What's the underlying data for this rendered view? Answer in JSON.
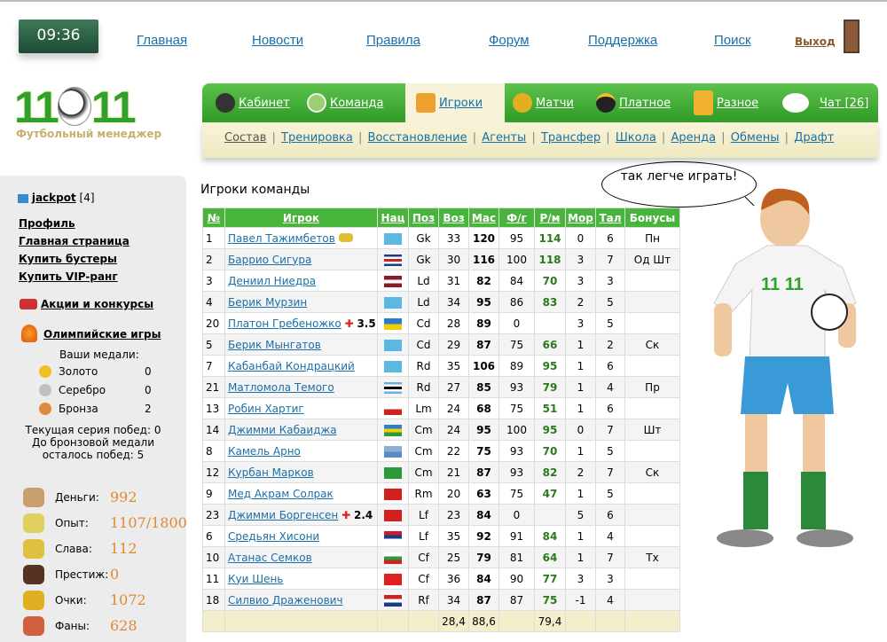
{
  "clock": "09:36",
  "topnav": [
    "Главная",
    "Новости",
    "Правила",
    "Форум",
    "Поддержка",
    "Поиск"
  ],
  "exit": "Выход",
  "logo": {
    "text_left": "11",
    "text_right": "11",
    "subtitle": "Футбольный менеджер"
  },
  "mainnav": [
    {
      "label": "Кабинет",
      "icon": "manager-icon"
    },
    {
      "label": "Команда",
      "icon": "stadium-icon"
    },
    {
      "label": "Игроки",
      "icon": "players-icon",
      "active": true
    },
    {
      "label": "Матчи",
      "icon": "trophy-ball-icon"
    },
    {
      "label": "Платное",
      "icon": "wallet-icon"
    },
    {
      "label": "Разное",
      "icon": "beer-icon"
    },
    {
      "label": "Чат [26]",
      "icon": "chat-bubble-icon"
    }
  ],
  "subnav": [
    "Состав",
    "Тренировка",
    "Восстановление",
    "Агенты",
    "Трансфер",
    "Школа",
    "Аренда",
    "Обмены",
    "Драфт"
  ],
  "sidebar": {
    "user": "jackpot",
    "level": "[4]",
    "links": [
      "Профиль",
      "Главная страница",
      "Купить бустеры",
      "Купить VIP-ранг"
    ],
    "promo": "Акции и конкурсы",
    "olympic": "Олимпийские игры",
    "medals_title": "Ваши медали:",
    "medals": [
      {
        "name": "Золото",
        "count": "0",
        "color": "#f0c020"
      },
      {
        "name": "Серебро",
        "count": "0",
        "color": "#c0c0c0"
      },
      {
        "name": "Бронза",
        "count": "2",
        "color": "#e08a40"
      }
    ],
    "streak": "Текущая серия побед: 0",
    "to_bronze": "До бронзовой медали",
    "wins_left": "осталось побед: 5",
    "stats": [
      {
        "label": "Деньги:",
        "value": "992",
        "icon": "money-bag-icon"
      },
      {
        "label": "Опыт:",
        "value": "1107/1800",
        "icon": "experience-icon"
      },
      {
        "label": "Слава:",
        "value": "112",
        "icon": "podium-icon"
      },
      {
        "label": "Престиж:",
        "value": "0",
        "icon": "gentleman-icon"
      },
      {
        "label": "Очки:",
        "value": "1072",
        "icon": "cup-icon"
      },
      {
        "label": "Фаны:",
        "value": "628",
        "icon": "fans-icon"
      }
    ]
  },
  "page_title": "Игроки команды",
  "bubble": "так легче играть!",
  "table": {
    "headers": [
      "№",
      "Игрок",
      "Нац",
      "Поз",
      "Воз",
      "Мас",
      "Ф/г",
      "Р/м",
      "Мор",
      "Тал",
      "Бонусы"
    ],
    "rows": [
      [
        "1",
        "Павел Тажимбетов",
        "",
        "Gk",
        "33",
        "120",
        "95",
        "114",
        "0",
        "6",
        "Пн",
        "kz"
      ],
      [
        "2",
        "Баррио Сигура",
        "",
        "Gk",
        "30",
        "116",
        "100",
        "118",
        "3",
        "7",
        "Од Шт",
        "cr"
      ],
      [
        "3",
        "Дениил Ниедра",
        "",
        "Ld",
        "31",
        "82",
        "84",
        "70",
        "3",
        "3",
        "",
        "lv"
      ],
      [
        "4",
        "Берик Мурзин",
        "",
        "Ld",
        "34",
        "95",
        "86",
        "83",
        "2",
        "5",
        "",
        "kz"
      ],
      [
        "20",
        "Платон Гребеножко",
        "3.5",
        "Cd",
        "28",
        "89",
        "0",
        "",
        "3",
        "5",
        "",
        "ua"
      ],
      [
        "5",
        "Берик Мынгатов",
        "",
        "Cd",
        "29",
        "87",
        "75",
        "66",
        "1",
        "2",
        "Ск",
        "kz"
      ],
      [
        "7",
        "Кабанбай Кондрацкий",
        "",
        "Rd",
        "35",
        "106",
        "89",
        "95",
        "1",
        "6",
        "",
        "kz"
      ],
      [
        "21",
        "Матломола Темого",
        "",
        "Rd",
        "27",
        "85",
        "93",
        "79",
        "1",
        "4",
        "Пр",
        "bw"
      ],
      [
        "13",
        "Робин Хартиг",
        "",
        "Lm",
        "24",
        "68",
        "75",
        "51",
        "1",
        "6",
        "",
        "cz"
      ],
      [
        "14",
        "Джимми Кабаиджа",
        "",
        "Cm",
        "24",
        "95",
        "100",
        "95",
        "0",
        "7",
        "Шт",
        "rw"
      ],
      [
        "8",
        "Камель Арно",
        "",
        "Cm",
        "22",
        "75",
        "93",
        "70",
        "1",
        "5",
        "",
        "xx"
      ],
      [
        "12",
        "Курбан Марков",
        "",
        "Cm",
        "21",
        "87",
        "93",
        "82",
        "2",
        "7",
        "Ск",
        "tm"
      ],
      [
        "9",
        "Мед Акрам Солрак",
        "",
        "Rm",
        "20",
        "63",
        "75",
        "47",
        "1",
        "5",
        "",
        "tn"
      ],
      [
        "23",
        "Джимми Боргенсен",
        "2.4",
        "Lf",
        "23",
        "84",
        "0",
        "",
        "5",
        "6",
        "",
        "dk"
      ],
      [
        "6",
        "Средьян Хисони",
        "",
        "Lf",
        "35",
        "92",
        "91",
        "84",
        "1",
        "4",
        "",
        "rs"
      ],
      [
        "10",
        "Атанас Семков",
        "",
        "Cf",
        "25",
        "79",
        "81",
        "64",
        "1",
        "7",
        "Тх",
        "bg"
      ],
      [
        "11",
        "Куи Шень",
        "",
        "Cf",
        "36",
        "84",
        "90",
        "77",
        "3",
        "3",
        "",
        "cn"
      ],
      [
        "18",
        "Силвио Драженович",
        "",
        "Rf",
        "34",
        "87",
        "87",
        "75",
        "-1",
        "4",
        "",
        "hr"
      ]
    ],
    "totals": {
      "age": "28,4",
      "mastery": "88,6",
      "rating": "79,4"
    }
  },
  "flags": {
    "kz": [
      "#5cb8e0"
    ],
    "cr": [
      "#1a3a8a",
      "#fff",
      "#d02020",
      "#fff",
      "#1a3a8a"
    ],
    "lv": [
      "#8a1a2a",
      "#fff",
      "#8a1a2a"
    ],
    "ua": [
      "#2a7ad0",
      "#f0d000"
    ],
    "bw": [
      "#6ab0e0",
      "#fff",
      "#000",
      "#fff",
      "#6ab0e0"
    ],
    "cz": [
      "#fff",
      "#d02020"
    ],
    "rw": [
      "#2a80d0",
      "#f0d000",
      "#2a9a3a"
    ],
    "xx": [
      "#8ab0d8",
      "#5a8ac0"
    ],
    "tm": [
      "#2a9a3a"
    ],
    "tn": [
      "#d02020"
    ],
    "dk": [
      "#d02020"
    ],
    "rs": [
      "#c02030",
      "#1a3a8a",
      "#fff"
    ],
    "bg": [
      "#fff",
      "#2a9a3a",
      "#d02020"
    ],
    "cn": [
      "#e02020"
    ],
    "hr": [
      "#d02020",
      "#fff",
      "#1a3a8a"
    ]
  }
}
